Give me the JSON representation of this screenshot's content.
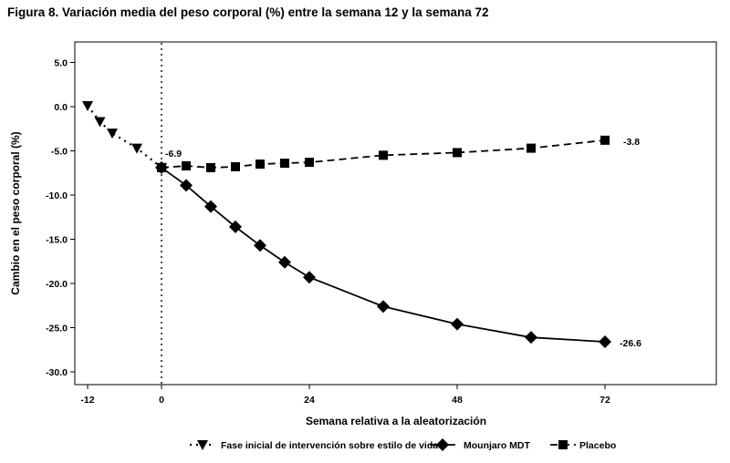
{
  "chart_data": {
    "type": "line",
    "title": "Figura 8. Variación media del peso corporal (%) entre la semana 12 y la semana 72",
    "xlabel": "Semana relativa a la aleatorización",
    "ylabel": "Cambio en el peso corporal (%)",
    "xlim": [
      -14,
      86
    ],
    "ylim": [
      -31,
      7
    ],
    "xticks": [
      -12,
      0,
      24,
      48,
      72
    ],
    "yticks": [
      5.0,
      0.0,
      -5.0,
      -10.0,
      -15.0,
      -20.0,
      -25.0,
      -30.0
    ],
    "xtick_labels": [
      "-12",
      "0",
      "24",
      "48",
      "72"
    ],
    "ytick_labels": [
      "5.0",
      "0.0",
      "-5.0",
      "-10.0",
      "-15.0",
      "-20.0",
      "-25.0",
      "-30.0"
    ],
    "reference_line_x": 0,
    "grid": false,
    "legend_position": "bottom",
    "series": [
      {
        "name": "Fase inicial de intervención sobre estilo de vida",
        "style": "dotted",
        "marker": "triangle-down",
        "color": "#000000",
        "x": [
          -12,
          -10,
          -8,
          -4,
          0
        ],
        "y": [
          0.1,
          -1.7,
          -3.0,
          -4.7,
          -6.9
        ]
      },
      {
        "name": "Mounjaro MDT",
        "style": "solid",
        "marker": "diamond",
        "color": "#000000",
        "x": [
          0,
          4,
          8,
          12,
          16,
          20,
          24,
          36,
          48,
          60,
          72
        ],
        "y": [
          -6.9,
          -8.9,
          -11.3,
          -13.6,
          -15.7,
          -17.6,
          -19.3,
          -22.6,
          -24.6,
          -26.1,
          -26.6
        ]
      },
      {
        "name": "Placebo",
        "style": "dashed",
        "marker": "square",
        "color": "#000000",
        "x": [
          0,
          4,
          8,
          12,
          16,
          20,
          24,
          36,
          48,
          60,
          72
        ],
        "y": [
          -6.9,
          -6.7,
          -6.9,
          -6.8,
          -6.5,
          -6.4,
          -6.3,
          -5.5,
          -5.2,
          -4.7,
          -3.8
        ]
      }
    ],
    "annotations": [
      {
        "label": "-6.9",
        "x": 0,
        "y": -6.9
      },
      {
        "label": "-3.8",
        "x": 72,
        "y": -3.8
      },
      {
        "label": "-26.6",
        "x": 72,
        "y": -26.6
      }
    ]
  }
}
